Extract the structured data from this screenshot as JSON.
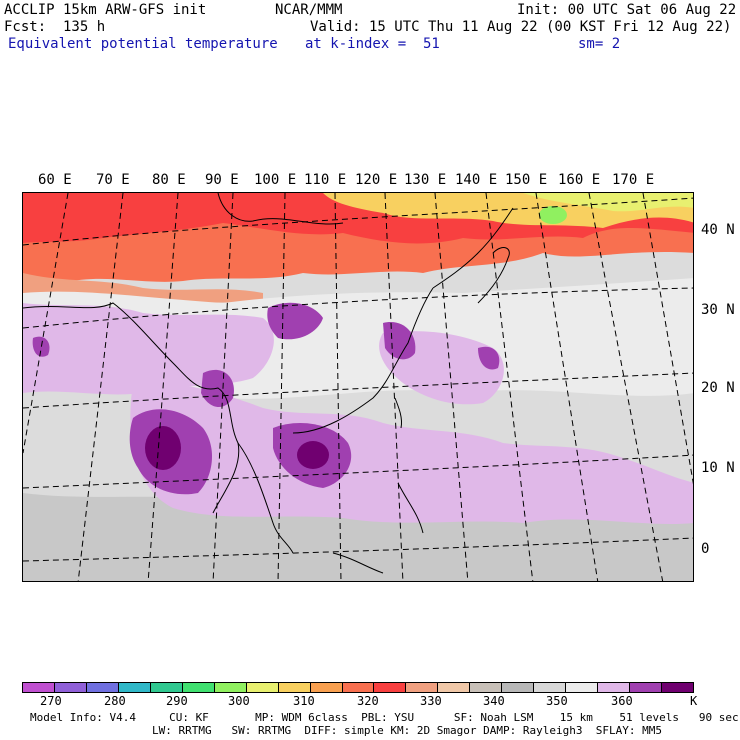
{
  "header": {
    "model": "ACCLIP 15km ARW-GFS init",
    "org": "NCAR/MMM",
    "init": "Init: 00 UTC Sat 06 Aug 22",
    "fcst": "Fcst:  135 h",
    "valid": "Valid: 15 UTC Thu 11 Aug 22 (00 KST Fri 12 Aug 22)",
    "field": "Equivalent potential temperature",
    "level": "at k-index =  51",
    "smooth": "sm= 2"
  },
  "map": {
    "lon_labels": [
      "60 E",
      "70 E",
      "80 E",
      "90 E",
      "100 E",
      "110 E",
      "120 E",
      "130 E",
      "140 E",
      "150 E",
      "160 E",
      "170 E"
    ],
    "lat_labels": [
      "40 N",
      "30 N",
      "20 N",
      "10 N",
      "0"
    ]
  },
  "colorbar": {
    "unit": "K",
    "labels": [
      "270",
      "280",
      "290",
      "300",
      "310",
      "320",
      "330",
      "340",
      "350",
      "360"
    ],
    "colors": [
      "#c050d0",
      "#9060d8",
      "#7070e0",
      "#30b8c8",
      "#30c890",
      "#40e070",
      "#90f060",
      "#e8f070",
      "#f8d060",
      "#f8a050",
      "#f87050",
      "#f84040",
      "#f0a080",
      "#f0c8a8",
      "#c8c0b8",
      "#b8b8b8",
      "#d8d8d8",
      "#ececec",
      "#e0b8e8",
      "#a040b0",
      "#700070"
    ]
  },
  "info": {
    "line1": "Model Info: V4.4     CU: KF       MP: WDM 6class  PBL: YSU      SF: Noah LSM    15 km    51 levels   90 sec",
    "line2": "LW: RRTMG   SW: RRTMG  DIFF: simple KM: 2D Smagor DAMP: Rayleigh3  SFLAY: MM5"
  }
}
